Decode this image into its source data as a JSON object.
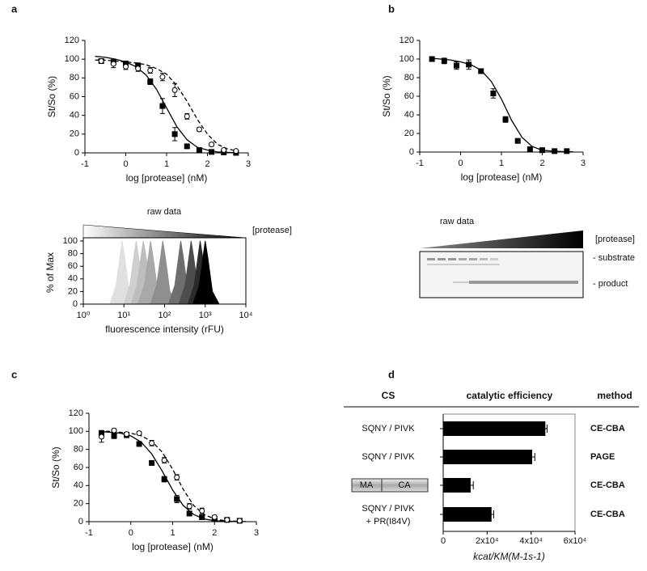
{
  "chart_data": [
    {
      "type": "line",
      "panel": "a",
      "xlabel": "log [protease] (nM)",
      "ylabel": "St/So (%)",
      "xlim": [
        -1,
        3
      ],
      "xticks": [
        -1,
        0,
        1,
        2,
        3
      ],
      "ylim": [
        0,
        120
      ],
      "yticks": [
        0,
        20,
        40,
        60,
        80,
        100,
        120
      ],
      "series": [
        {
          "color": "#000000",
          "line": "solid",
          "x": [
            -0.75,
            -0.5,
            -0.25,
            0,
            0.25,
            0.5,
            0.75,
            1,
            1.25,
            1.5,
            1.75,
            2,
            2.25,
            2.5,
            2.75
          ],
          "values": [
            103,
            102,
            100,
            97,
            92,
            83,
            68,
            48,
            28,
            14,
            6,
            3,
            1,
            0.5,
            0
          ]
        },
        {
          "color": "#000000",
          "line": "dashed",
          "x": [
            -0.75,
            -0.5,
            -0.25,
            0,
            0.25,
            0.5,
            0.75,
            1,
            1.25,
            1.5,
            1.75,
            2,
            2.25,
            2.5,
            2.75
          ],
          "values": [
            99,
            99,
            98,
            97,
            96,
            94,
            90,
            84,
            72,
            55,
            36,
            20,
            9,
            4,
            2
          ]
        },
        {
          "color": "#000000",
          "marker": "square",
          "fill": "#000000",
          "x": [
            -0.6,
            -0.3,
            0,
            0.3,
            0.6,
            0.9,
            1.2,
            1.5,
            1.8,
            2.1,
            2.4,
            2.7
          ],
          "values": [
            98,
            97,
            95,
            93,
            76,
            50,
            20,
            7,
            3,
            1,
            0.5,
            0
          ],
          "errors": [
            2,
            2,
            3,
            3,
            3,
            8,
            7,
            2,
            1,
            1,
            1,
            1
          ]
        },
        {
          "color": "#000000",
          "marker": "circle",
          "fill": "#ffffff",
          "x": [
            -0.6,
            -0.3,
            0,
            0.3,
            0.6,
            0.9,
            1.2,
            1.5,
            1.8,
            2.1,
            2.4,
            2.7
          ],
          "values": [
            98,
            95,
            92,
            90,
            88,
            81,
            67,
            39,
            25,
            9,
            3,
            2
          ],
          "errors": [
            2,
            4,
            3,
            3,
            3,
            4,
            7,
            3,
            2,
            2,
            1,
            1
          ]
        }
      ]
    },
    {
      "type": "area",
      "title": "raw data",
      "legend_label": "[protease]",
      "xlabel": "fluorescence intensity (rFU)",
      "ylabel": "% of Max",
      "xscale": "log",
      "xlim": [
        1,
        10000
      ],
      "xticks": [
        {
          "value": 1,
          "label": "10⁰"
        },
        {
          "value": 10,
          "label": "10¹"
        },
        {
          "value": 100,
          "label": "10²"
        },
        {
          "value": 1000,
          "label": "10³"
        },
        {
          "value": 10000,
          "label": "10⁴"
        }
      ],
      "ylim": [
        0,
        100
      ],
      "yticks": [
        0,
        20,
        40,
        60,
        80,
        100
      ],
      "series": [
        {
          "color": "#e0e0e0",
          "x": [
            4.5,
            6.4,
            8.2,
            9,
            10.4,
            13.5,
            20
          ],
          "values": [
            0,
            30,
            80,
            100,
            75,
            20,
            0
          ]
        },
        {
          "color": "#cfcfcf",
          "x": [
            10,
            14,
            18,
            20,
            23,
            30,
            44
          ],
          "values": [
            0,
            30,
            80,
            100,
            75,
            20,
            0
          ]
        },
        {
          "color": "#bdbdbd",
          "x": [
            15,
            21,
            27,
            30,
            35,
            45,
            66
          ],
          "values": [
            0,
            30,
            80,
            100,
            75,
            20,
            0
          ]
        },
        {
          "color": "#a8a8a8",
          "x": [
            22,
            32,
            41,
            45,
            52,
            68,
            99
          ],
          "values": [
            0,
            30,
            80,
            100,
            75,
            20,
            0
          ]
        },
        {
          "color": "#8f8f8f",
          "x": [
            45,
            64,
            82,
            90,
            104,
            135,
            198
          ],
          "values": [
            0,
            30,
            80,
            100,
            75,
            20,
            0
          ]
        },
        {
          "color": "#6e6e6e",
          "x": [
            125,
            179,
            227,
            250,
            288,
            375,
            550
          ],
          "values": [
            0,
            30,
            80,
            100,
            75,
            20,
            0
          ]
        },
        {
          "color": "#4d4d4d",
          "x": [
            225,
            321,
            409,
            450,
            518,
            675,
            990
          ],
          "values": [
            0,
            30,
            80,
            100,
            75,
            20,
            0
          ]
        },
        {
          "color": "#2b2b2b",
          "x": [
            375,
            536,
            682,
            750,
            863,
            1125,
            1650
          ],
          "values": [
            0,
            30,
            80,
            100,
            75,
            20,
            0
          ]
        },
        {
          "color": "#000000",
          "x": [
            500,
            714,
            909,
            1000,
            1150,
            1500,
            2200
          ],
          "values": [
            0,
            30,
            80,
            100,
            75,
            20,
            0
          ]
        }
      ]
    },
    {
      "type": "line",
      "panel": "b",
      "xlabel": "log [protease] (nM)",
      "ylabel": "St/So (%)",
      "xlim": [
        -1,
        3
      ],
      "xticks": [
        -1,
        0,
        1,
        2,
        3
      ],
      "ylim": [
        0,
        120
      ],
      "yticks": [
        0,
        20,
        40,
        60,
        80,
        100,
        120
      ],
      "series": [
        {
          "color": "#000000",
          "line": "solid",
          "x": [
            -0.75,
            -0.5,
            -0.25,
            0,
            0.25,
            0.5,
            0.75,
            1,
            1.25,
            1.5,
            1.75,
            2,
            2.25,
            2.5,
            2.75
          ],
          "values": [
            101,
            100,
            99,
            97,
            94,
            88,
            76,
            57,
            34,
            16,
            6,
            2,
            1,
            0.5,
            0.3
          ]
        },
        {
          "color": "#000000",
          "marker": "square",
          "fill": "#000000",
          "x": [
            -0.7,
            -0.4,
            -0.1,
            0.2,
            0.5,
            0.8,
            1.1,
            1.4,
            1.7,
            2.0,
            2.3,
            2.6
          ],
          "values": [
            100,
            98,
            93,
            94,
            87,
            63,
            35,
            12,
            3,
            2,
            1,
            1
          ],
          "errors": [
            2,
            3,
            4,
            5,
            2,
            5,
            3,
            2,
            2,
            1,
            1,
            1
          ]
        }
      ],
      "gel": {
        "title": "raw data",
        "legend_label": "[protease]",
        "bands": [
          "- substrate",
          "- product"
        ]
      }
    },
    {
      "type": "line",
      "panel": "c",
      "xlabel": "log [protease] (nM)",
      "ylabel": "St/So (%)",
      "xlim": [
        -1,
        3
      ],
      "xticks": [
        -1,
        0,
        1,
        2,
        3
      ],
      "ylim": [
        0,
        120
      ],
      "yticks": [
        0,
        20,
        40,
        60,
        80,
        100,
        120
      ],
      "series": [
        {
          "color": "#000000",
          "line": "solid",
          "x": [
            -0.75,
            -0.5,
            -0.25,
            0,
            0.25,
            0.5,
            0.75,
            1,
            1.25,
            1.5,
            1.75,
            2,
            2.25,
            2.5,
            2.75
          ],
          "values": [
            100,
            99,
            98,
            95,
            88,
            75,
            56,
            35,
            18,
            8,
            3,
            1,
            0.5,
            0.2,
            0.1
          ]
        },
        {
          "color": "#000000",
          "line": "dashed",
          "x": [
            -0.75,
            -0.5,
            -0.25,
            0,
            0.25,
            0.5,
            0.75,
            1,
            1.25,
            1.5,
            1.75,
            2,
            2.25,
            2.5,
            2.75
          ],
          "values": [
            100,
            100,
            99,
            98,
            95,
            89,
            77,
            58,
            36,
            18,
            8,
            3,
            1,
            0.5,
            0.2
          ]
        },
        {
          "color": "#000000",
          "marker": "square",
          "fill": "#000000",
          "x": [
            -0.7,
            -0.4,
            -0.1,
            0.2,
            0.5,
            0.8,
            1.1,
            1.4,
            1.7,
            2.0,
            2.3,
            2.6
          ],
          "values": [
            98,
            95,
            96,
            86,
            65,
            47,
            25,
            9,
            5,
            3,
            2,
            1
          ],
          "errors": [
            3,
            3,
            3,
            2,
            2,
            3,
            4,
            2,
            2,
            2,
            1,
            1
          ]
        },
        {
          "color": "#000000",
          "marker": "circle",
          "fill": "#ffffff",
          "x": [
            -0.7,
            -0.4,
            -0.1,
            0.2,
            0.5,
            0.8,
            1.1,
            1.4,
            1.7,
            2.0,
            2.3,
            2.6
          ],
          "values": [
            94,
            101,
            97,
            98,
            87,
            68,
            49,
            17,
            12,
            5,
            2,
            1
          ],
          "errors": [
            6,
            2,
            2,
            2,
            3,
            3,
            3,
            3,
            3,
            2,
            1,
            1
          ]
        }
      ]
    },
    {
      "type": "bar",
      "panel": "d",
      "orientation": "horizontal",
      "columns": [
        "CS",
        "catalytic efficiency",
        "method"
      ],
      "categories": [
        "SQNY / PIVK",
        "SQNY / PIVK",
        null,
        "SQNY / PIVK"
      ],
      "construct_labels": [
        "MA",
        "CA"
      ],
      "annotations": [
        "+ PR(I84V)"
      ],
      "methods": [
        "CE-CBA",
        "PAGE",
        "CE-CBA",
        "CE-CBA"
      ],
      "values": [
        46500,
        40500,
        12500,
        22000
      ],
      "errors": [
        800,
        1200,
        1200,
        1000
      ],
      "color": "#000000",
      "xlabel": "kcat/KM(M-1s-1)",
      "xlim": [
        0,
        60000
      ],
      "xticks": [
        0,
        {
          "value": 20000,
          "label": "2x10⁴"
        },
        {
          "value": 40000,
          "label": "4x10⁴"
        },
        {
          "value": 60000,
          "label": "6x10⁴"
        }
      ]
    }
  ]
}
